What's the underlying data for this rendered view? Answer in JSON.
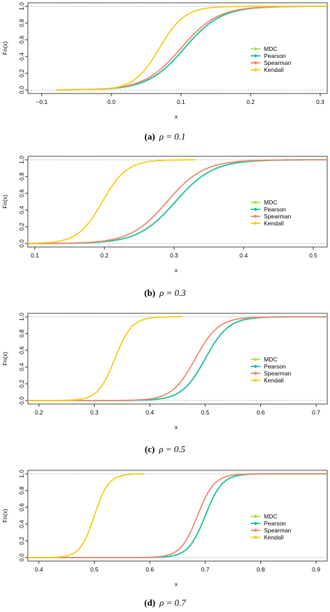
{
  "chart_data": [
    {
      "type": "line",
      "caption_label": "(a)",
      "caption_eq": "ρ = 0.1",
      "xlabel": "x",
      "ylabel": "Fn(x)",
      "xlim": [
        -0.12,
        0.31
      ],
      "ylim": [
        0,
        1
      ],
      "xticks": [
        -0.1,
        0.0,
        0.1,
        0.2,
        0.3
      ],
      "xtick_labels": [
        "−0.1",
        "0.0",
        "0.1",
        "0.2",
        "0.3"
      ],
      "yticks": [
        0,
        0.2,
        0.4,
        0.6,
        0.8,
        1.0
      ],
      "ytick_labels": [
        "0.0",
        "0.2",
        "0.4",
        "0.6",
        "0.8",
        "1.0"
      ],
      "grid": false,
      "legend": "right",
      "series": [
        {
          "name": "MDC",
          "color": "#a6e34c",
          "mu": 0.105,
          "sigma": 0.045,
          "xmin": -0.08,
          "xmax": 0.31
        },
        {
          "name": "Pearson",
          "color": "#1fbfa6",
          "mu": 0.105,
          "sigma": 0.045,
          "xmin": -0.08,
          "xmax": 0.31
        },
        {
          "name": "Spearman",
          "color": "#ea8a6f",
          "mu": 0.1,
          "sigma": 0.045,
          "xmin": -0.08,
          "xmax": 0.31
        },
        {
          "name": "Kendall",
          "color": "#f5cc1a",
          "mu": 0.069,
          "sigma": 0.031,
          "xmin": -0.08,
          "xmax": 0.31
        }
      ]
    },
    {
      "type": "line",
      "caption_label": "(b)",
      "caption_eq": "ρ = 0.3",
      "xlabel": "x",
      "ylabel": "Fn(x)",
      "xlim": [
        0.09,
        0.52
      ],
      "ylim": [
        0,
        1
      ],
      "xticks": [
        0.1,
        0.2,
        0.3,
        0.4,
        0.5
      ],
      "xtick_labels": [
        "0.1",
        "0.2",
        "0.3",
        "0.4",
        "0.5"
      ],
      "yticks": [
        0,
        0.2,
        0.4,
        0.6,
        0.8,
        1.0
      ],
      "ytick_labels": [
        "0.0",
        "0.2",
        "0.4",
        "0.6",
        "0.8",
        "1.0"
      ],
      "grid": false,
      "legend": "right",
      "series": [
        {
          "name": "MDC",
          "color": "#a6e34c",
          "mu": 0.302,
          "sigma": 0.046,
          "xmin": 0.09,
          "xmax": 0.52
        },
        {
          "name": "Pearson",
          "color": "#1fbfa6",
          "mu": 0.302,
          "sigma": 0.046,
          "xmin": 0.09,
          "xmax": 0.52
        },
        {
          "name": "Spearman",
          "color": "#ea8a6f",
          "mu": 0.29,
          "sigma": 0.045,
          "xmin": 0.09,
          "xmax": 0.52
        },
        {
          "name": "Kendall",
          "color": "#f5cc1a",
          "mu": 0.197,
          "sigma": 0.03,
          "xmin": 0.09,
          "xmax": 0.33
        }
      ]
    },
    {
      "type": "line",
      "caption_label": "(c)",
      "caption_eq": "ρ = 0.5",
      "xlabel": "x",
      "ylabel": "Fn(x)",
      "xlim": [
        0.18,
        0.72
      ],
      "ylim": [
        0,
        1
      ],
      "xticks": [
        0.2,
        0.3,
        0.4,
        0.5,
        0.6,
        0.7
      ],
      "xtick_labels": [
        "0.2",
        "0.3",
        "0.4",
        "0.5",
        "0.6",
        "0.7"
      ],
      "yticks": [
        0,
        0.2,
        0.4,
        0.6,
        0.8,
        1.0
      ],
      "ytick_labels": [
        "0.0",
        "0.2",
        "0.4",
        "0.6",
        "0.8",
        "1.0"
      ],
      "grid": false,
      "legend": "right",
      "series": [
        {
          "name": "MDC",
          "color": "#a6e34c",
          "mu": 0.5,
          "sigma": 0.036,
          "xmin": 0.18,
          "xmax": 0.72
        },
        {
          "name": "Pearson",
          "color": "#1fbfa6",
          "mu": 0.5,
          "sigma": 0.036,
          "xmin": 0.18,
          "xmax": 0.72
        },
        {
          "name": "Spearman",
          "color": "#ea8a6f",
          "mu": 0.482,
          "sigma": 0.036,
          "xmin": 0.18,
          "xmax": 0.72
        },
        {
          "name": "Kendall",
          "color": "#f5cc1a",
          "mu": 0.337,
          "sigma": 0.026,
          "xmin": 0.18,
          "xmax": 0.46
        }
      ]
    },
    {
      "type": "line",
      "caption_label": "(d)",
      "caption_eq": "ρ = 0.7",
      "xlabel": "x",
      "ylabel": "Fn(x)",
      "xlim": [
        0.38,
        0.92
      ],
      "ylim": [
        0,
        1
      ],
      "xticks": [
        0.4,
        0.5,
        0.6,
        0.7,
        0.8,
        0.9
      ],
      "xtick_labels": [
        "0.4",
        "0.5",
        "0.6",
        "0.7",
        "0.8",
        "0.9"
      ],
      "yticks": [
        0,
        0.2,
        0.4,
        0.6,
        0.8,
        1.0
      ],
      "ytick_labels": [
        "0.0",
        "0.2",
        "0.4",
        "0.6",
        "0.8",
        "1.0"
      ],
      "grid": false,
      "legend": "right",
      "series": [
        {
          "name": "MDC",
          "color": "#a6e34c",
          "mu": 0.7,
          "sigma": 0.026,
          "xmin": 0.38,
          "xmax": 0.92
        },
        {
          "name": "Pearson",
          "color": "#1fbfa6",
          "mu": 0.7,
          "sigma": 0.026,
          "xmin": 0.38,
          "xmax": 0.92
        },
        {
          "name": "Spearman",
          "color": "#ea8a6f",
          "mu": 0.686,
          "sigma": 0.026,
          "xmin": 0.38,
          "xmax": 0.92
        },
        {
          "name": "Kendall",
          "color": "#f5cc1a",
          "mu": 0.5,
          "sigma": 0.022,
          "xmin": 0.38,
          "xmax": 0.59
        }
      ]
    }
  ]
}
